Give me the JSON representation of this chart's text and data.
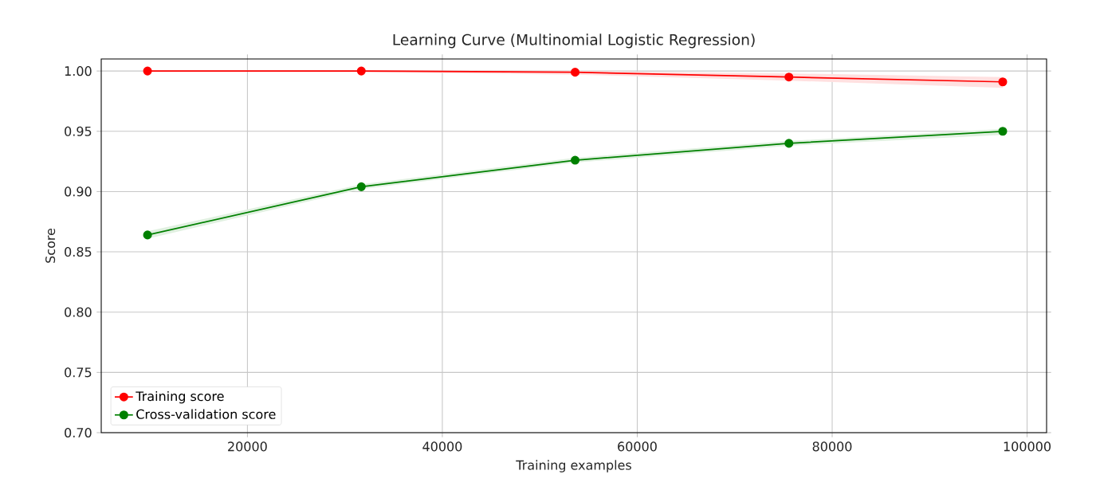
{
  "chart_data": {
    "type": "line",
    "title": "Learning Curve (Multinomial Logistic Regression)",
    "xlabel": "Training examples",
    "ylabel": "Score",
    "x": [
      9750,
      31687,
      53625,
      75562,
      97500
    ],
    "series": [
      {
        "name": "Training score",
        "color": "#ff0000",
        "values": [
          1.0,
          1.0,
          0.999,
          0.995,
          0.991
        ],
        "lower": [
          1.0,
          0.999,
          0.997,
          0.992,
          0.986
        ],
        "upper": [
          1.0,
          1.0,
          1.0,
          0.998,
          0.995
        ]
      },
      {
        "name": "Cross-validation score",
        "color": "#008000",
        "values": [
          0.864,
          0.904,
          0.926,
          0.94,
          0.95
        ],
        "lower": [
          0.861,
          0.902,
          0.924,
          0.938,
          0.947
        ],
        "upper": [
          0.867,
          0.906,
          0.928,
          0.942,
          0.952
        ]
      }
    ],
    "xlim": [
      5000,
      102000
    ],
    "ylim": [
      0.7,
      1.01
    ],
    "xticks": [
      20000,
      40000,
      60000,
      80000,
      100000
    ],
    "yticks": [
      {
        "value": 0.7,
        "label": "0.70"
      },
      {
        "value": 0.75,
        "label": "0.75"
      },
      {
        "value": 0.8,
        "label": "0.80"
      },
      {
        "value": 0.85,
        "label": "0.85"
      },
      {
        "value": 0.9,
        "label": "0.90"
      },
      {
        "value": 0.95,
        "label": "0.95"
      },
      {
        "value": 1.0,
        "label": "1.00"
      }
    ],
    "grid": true,
    "legend": "bottom left",
    "marker": "circle",
    "line_style": "solid"
  }
}
